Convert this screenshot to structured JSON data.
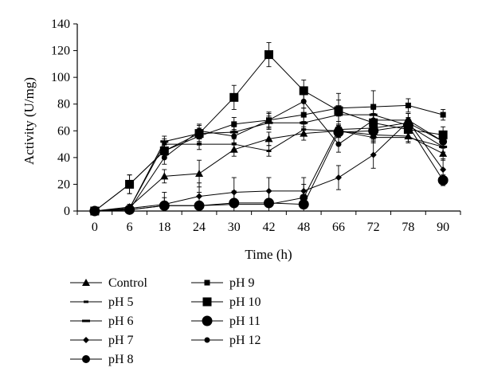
{
  "chart_data": {
    "type": "line",
    "title": "",
    "xlabel": "Time (h)",
    "ylabel": "Activity (U/mg)",
    "categories": [
      "0",
      "6",
      "18",
      "24",
      "30",
      "42",
      "48",
      "66",
      "72",
      "78",
      "90"
    ],
    "yticks": [
      0,
      20,
      40,
      60,
      80,
      100,
      120,
      140
    ],
    "ylim": [
      0,
      140
    ],
    "grid": false,
    "legend_position": "bottom-left",
    "series": [
      {
        "name": "Control",
        "marker": "triangle",
        "values": [
          0,
          3,
          26,
          28,
          46,
          54,
          58,
          60,
          57,
          56,
          43
        ],
        "errors": [
          0,
          2,
          5,
          10,
          5,
          5,
          5,
          5,
          4,
          4,
          5
        ]
      },
      {
        "name": "pH 5",
        "marker": "dash-small",
        "values": [
          0,
          2,
          50,
          50,
          50,
          45,
          61,
          60,
          55,
          55,
          48
        ],
        "errors": [
          0,
          2,
          4,
          4,
          4,
          4,
          4,
          4,
          4,
          4,
          4
        ]
      },
      {
        "name": "pH 6",
        "marker": "dash",
        "values": [
          0,
          2,
          52,
          58,
          59,
          66,
          66,
          72,
          72,
          64,
          48
        ],
        "errors": [
          0,
          2,
          4,
          4,
          4,
          5,
          5,
          5,
          4,
          4,
          4
        ]
      },
      {
        "name": "pH 7",
        "marker": "diamond",
        "values": [
          0,
          2,
          5,
          11,
          14,
          15,
          15,
          25,
          42,
          67,
          31
        ],
        "errors": [
          0,
          2,
          5,
          10,
          11,
          10,
          10,
          9,
          10,
          6,
          8
        ]
      },
      {
        "name": "pH 8",
        "marker": "circle-medium",
        "values": [
          0,
          1,
          4,
          4,
          5,
          5,
          10,
          61,
          62,
          66,
          52
        ],
        "errors": [
          0,
          1,
          10,
          10,
          10,
          10,
          10,
          4,
          4,
          4,
          4
        ]
      },
      {
        "name": "pH 9",
        "marker": "square-small",
        "values": [
          0,
          20,
          45,
          56,
          65,
          68,
          72,
          77,
          78,
          79,
          72
        ],
        "errors": [
          0,
          7,
          5,
          5,
          5,
          5,
          5,
          6,
          12,
          5,
          4
        ]
      },
      {
        "name": "pH 10",
        "marker": "square",
        "values": [
          0,
          20,
          45,
          58,
          85,
          117,
          90,
          75,
          66,
          61,
          57
        ],
        "errors": [
          0,
          7,
          6,
          6,
          9,
          9,
          8,
          13,
          12,
          6,
          6
        ]
      },
      {
        "name": "pH 11",
        "marker": "circle-large",
        "values": [
          0,
          1,
          4,
          4,
          6,
          6,
          5,
          59,
          60,
          64,
          23
        ],
        "errors": [
          0,
          1,
          2,
          2,
          2,
          2,
          2,
          4,
          4,
          4,
          4
        ]
      },
      {
        "name": "pH 12",
        "marker": "circle-small",
        "values": [
          0,
          1,
          40,
          60,
          56,
          68,
          82,
          50,
          68,
          68,
          52
        ],
        "errors": [
          0,
          1,
          5,
          5,
          5,
          6,
          5,
          6,
          5,
          5,
          5
        ]
      }
    ]
  }
}
